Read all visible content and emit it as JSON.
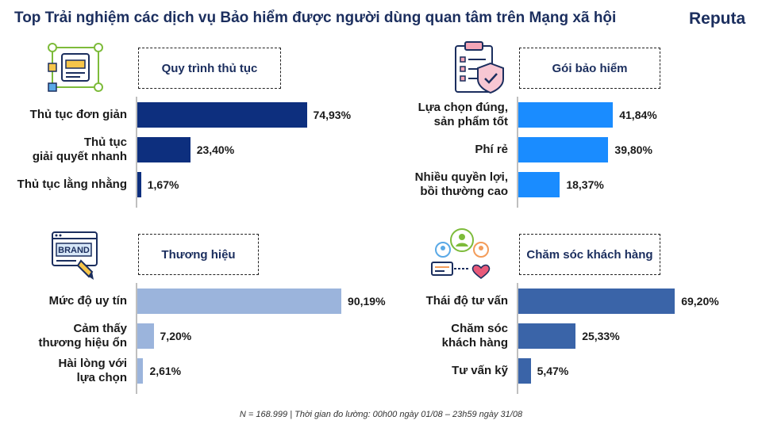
{
  "title": "Top Trải nghiệm các dịch vụ Bảo hiểm được người dùng quan tâm trên Mạng xã hội",
  "brand": "Reputa",
  "footnote": "N = 168.999 | Thời gian đo lường: 00h00 ngày 01/08 – 23h59 ngày 31/08",
  "icon_names": [
    "process-flow-icon",
    "checklist-shield-icon",
    "brand-pen-icon",
    "customer-care-icon"
  ],
  "colors": {
    "navy": "#0d2f7e",
    "bright_blue": "#1a8cff",
    "light_blue": "#9bb4dc",
    "medium_blue": "#3a64a8"
  },
  "chart_data": [
    {
      "type": "bar",
      "orientation": "horizontal",
      "title": "Quy trình thủ tục",
      "categories": [
        "Thủ tục đơn giản",
        "Thủ tục\ngiải quyết nhanh",
        "Thủ tục lằng nhằng"
      ],
      "values": [
        74.93,
        23.4,
        1.67
      ],
      "value_labels": [
        "74,93%",
        "23,40%",
        "1,67%"
      ],
      "unit": "%",
      "color": "#0d2f7e"
    },
    {
      "type": "bar",
      "orientation": "horizontal",
      "title": "Gói bảo hiểm",
      "categories": [
        "Lựa chọn đúng,\nsản phẩm tốt",
        "Phí rẻ",
        "Nhiều quyền lợi,\nbồi thường cao"
      ],
      "values": [
        41.84,
        39.8,
        18.37
      ],
      "value_labels": [
        "41,84%",
        "39,80%",
        "18,37%"
      ],
      "unit": "%",
      "color": "#1a8cff"
    },
    {
      "type": "bar",
      "orientation": "horizontal",
      "title": "Thương hiệu",
      "categories": [
        "Mức độ uy tín",
        "Cảm thấy\nthương hiệu ổn",
        "Hài lòng với\nlựa chọn"
      ],
      "values": [
        90.19,
        7.2,
        2.61
      ],
      "value_labels": [
        "90,19%",
        "7,20%",
        "2,61%"
      ],
      "unit": "%",
      "color": "#9bb4dc"
    },
    {
      "type": "bar",
      "orientation": "horizontal",
      "title": "Chăm sóc khách hàng",
      "categories": [
        "Thái độ tư vấn",
        "Chăm sóc\nkhách hàng",
        "Tư vấn kỹ"
      ],
      "values": [
        69.2,
        25.33,
        5.47
      ],
      "value_labels": [
        "69,20%",
        "25,33%",
        "5,47%"
      ],
      "unit": "%",
      "color": "#3a64a8"
    }
  ]
}
